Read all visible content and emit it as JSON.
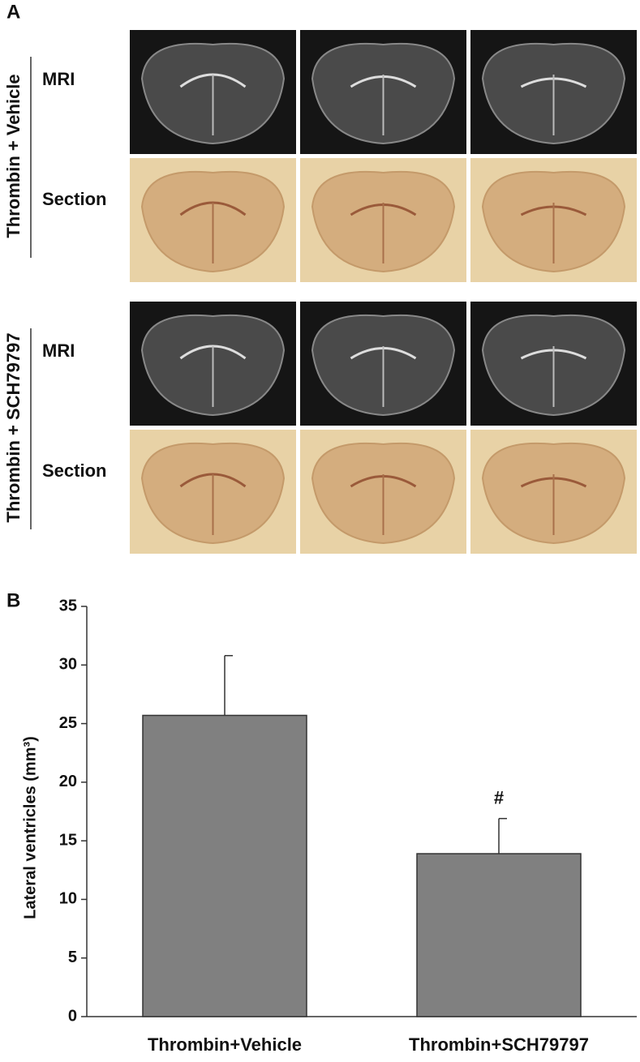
{
  "panel_a": {
    "label": "A",
    "groups": [
      {
        "label": "Thrombin + Vehicle",
        "rows": [
          "MRI",
          "Section"
        ]
      },
      {
        "label": "Thrombin + SCH79797",
        "rows": [
          "MRI",
          "Section"
        ]
      }
    ]
  },
  "chart_data": {
    "type": "bar",
    "panel_label": "B",
    "y_label": "Lateral ventricles (mm³)",
    "categories": [
      "Thrombin+Vehicle",
      "Thrombin+SCH79797"
    ],
    "values": [
      25.7,
      13.9
    ],
    "errors": [
      5.1,
      3.0
    ],
    "significance": [
      null,
      "#"
    ],
    "color": "#808080",
    "ylim": [
      0,
      35
    ],
    "yticks": [
      0,
      5,
      10,
      15,
      20,
      25,
      30,
      35
    ]
  }
}
